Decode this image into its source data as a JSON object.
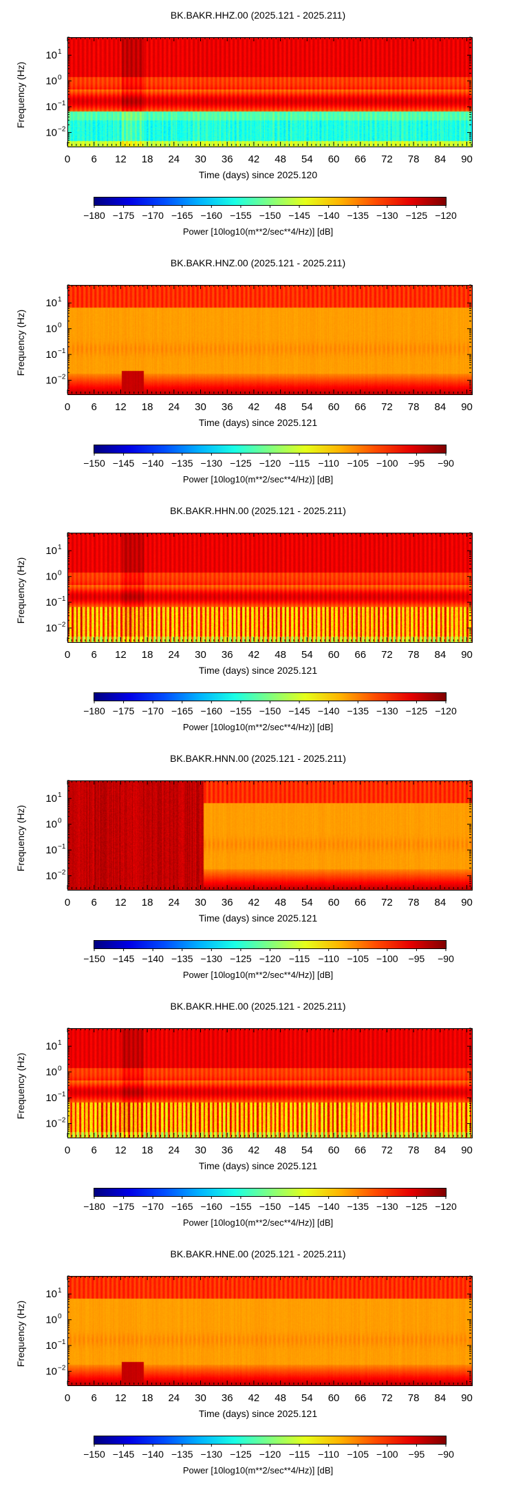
{
  "panels": [
    {
      "title": "BK.BAKR.HHZ.00 (2025.121 - 2025.211)",
      "ylabel": "Frequency (Hz)",
      "xlabel": "Time (days) since 2025.120",
      "colorbar_label": "Power [10log10(m**2/sec**4/Hz)] [dB]",
      "colorbar_ticks": [
        "−180",
        "−175",
        "−170",
        "−165",
        "−160",
        "−155",
        "−150",
        "−145",
        "−140",
        "−135",
        "−130",
        "−125",
        "−120"
      ],
      "profile": "broadband"
    },
    {
      "title": "BK.BAKR.HNZ.00 (2025.121 - 2025.211)",
      "ylabel": "Frequency (Hz)",
      "xlabel": "Time (days) since 2025.121",
      "colorbar_label": "Power [10log10(m**2/sec**4/Hz)] [dB]",
      "colorbar_ticks": [
        "−150",
        "−145",
        "−140",
        "−135",
        "−130",
        "−125",
        "−120",
        "−115",
        "−110",
        "−105",
        "−100",
        "−95",
        "−90"
      ],
      "profile": "strongmotion"
    },
    {
      "title": "BK.BAKR.HHN.00 (2025.121 - 2025.211)",
      "ylabel": "Frequency (Hz)",
      "xlabel": "Time (days) since 2025.121",
      "colorbar_label": "Power [10log10(m**2/sec**4/Hz)] [dB]",
      "colorbar_ticks": [
        "−180",
        "−175",
        "−170",
        "−165",
        "−160",
        "−155",
        "−150",
        "−145",
        "−140",
        "−135",
        "−130",
        "−125",
        "−120"
      ],
      "profile": "broadband_h"
    },
    {
      "title": "BK.BAKR.HNN.00 (2025.121 - 2025.211)",
      "ylabel": "Frequency (Hz)",
      "xlabel": "Time (days) since 2025.121",
      "colorbar_label": "Power [10log10(m**2/sec**4/Hz)] [dB]",
      "colorbar_ticks": [
        "−150",
        "−145",
        "−140",
        "−135",
        "−130",
        "−125",
        "−120",
        "−115",
        "−110",
        "−105",
        "−100",
        "−95",
        "−90"
      ],
      "profile": "strongmotion_early"
    },
    {
      "title": "BK.BAKR.HHE.00 (2025.121 - 2025.211)",
      "ylabel": "Frequency (Hz)",
      "xlabel": "Time (days) since 2025.121",
      "colorbar_label": "Power [10log10(m**2/sec**4/Hz)] [dB]",
      "colorbar_ticks": [
        "−180",
        "−175",
        "−170",
        "−165",
        "−160",
        "−155",
        "−150",
        "−145",
        "−140",
        "−135",
        "−130",
        "−125",
        "−120"
      ],
      "profile": "broadband_h"
    },
    {
      "title": "BK.BAKR.HNE.00 (2025.121 - 2025.211)",
      "ylabel": "Frequency (Hz)",
      "xlabel": "Time (days) since 2025.121",
      "colorbar_label": "Power [10log10(m**2/sec**4/Hz)] [dB]",
      "colorbar_ticks": [
        "−150",
        "−145",
        "−140",
        "−135",
        "−130",
        "−125",
        "−120",
        "−115",
        "−110",
        "−105",
        "−100",
        "−95",
        "−90"
      ],
      "profile": "strongmotion"
    }
  ],
  "chart_data": [
    {
      "type": "heatmap",
      "title": "BK.BAKR.HHZ.00 (2025.121 - 2025.211)",
      "xlabel": "Time (days) since 2025.120",
      "ylabel": "Frequency (Hz)",
      "xlim": [
        0,
        91
      ],
      "ylim": [
        0.003,
        50
      ],
      "yscale": "log",
      "x_ticks": [
        0,
        6,
        12,
        18,
        24,
        30,
        36,
        42,
        48,
        54,
        60,
        66,
        72,
        78,
        84,
        90
      ],
      "y_ticks": [
        "10^-2",
        "10^-1",
        "10^0",
        "10^1"
      ],
      "colorbar_range": [
        -180,
        -120
      ],
      "colormap": "jet",
      "colorbar_label": "Power [10log10(m**2/sec**4/Hz)] [dB]"
    },
    {
      "type": "heatmap",
      "title": "BK.BAKR.HNZ.00 (2025.121 - 2025.211)",
      "xlabel": "Time (days) since 2025.121",
      "ylabel": "Frequency (Hz)",
      "xlim": [
        0,
        91
      ],
      "ylim": [
        0.003,
        50
      ],
      "yscale": "log",
      "x_ticks": [
        0,
        6,
        12,
        18,
        24,
        30,
        36,
        42,
        48,
        54,
        60,
        66,
        72,
        78,
        84,
        90
      ],
      "y_ticks": [
        "10^-2",
        "10^-1",
        "10^0",
        "10^1"
      ],
      "colorbar_range": [
        -150,
        -90
      ],
      "colormap": "jet",
      "colorbar_label": "Power [10log10(m**2/sec**4/Hz)] [dB]"
    },
    {
      "type": "heatmap",
      "title": "BK.BAKR.HHN.00 (2025.121 - 2025.211)",
      "xlabel": "Time (days) since 2025.121",
      "ylabel": "Frequency (Hz)",
      "xlim": [
        0,
        91
      ],
      "ylim": [
        0.003,
        50
      ],
      "yscale": "log",
      "x_ticks": [
        0,
        6,
        12,
        18,
        24,
        30,
        36,
        42,
        48,
        54,
        60,
        66,
        72,
        78,
        84,
        90
      ],
      "y_ticks": [
        "10^-2",
        "10^-1",
        "10^0",
        "10^1"
      ],
      "colorbar_range": [
        -180,
        -120
      ],
      "colormap": "jet",
      "colorbar_label": "Power [10log10(m**2/sec**4/Hz)] [dB]"
    },
    {
      "type": "heatmap",
      "title": "BK.BAKR.HNN.00 (2025.121 - 2025.211)",
      "xlabel": "Time (days) since 2025.121",
      "ylabel": "Frequency (Hz)",
      "xlim": [
        0,
        91
      ],
      "ylim": [
        0.003,
        50
      ],
      "yscale": "log",
      "x_ticks": [
        0,
        6,
        12,
        18,
        24,
        30,
        36,
        42,
        48,
        54,
        60,
        66,
        72,
        78,
        84,
        90
      ],
      "y_ticks": [
        "10^-2",
        "10^-1",
        "10^0",
        "10^1"
      ],
      "colorbar_range": [
        -150,
        -90
      ],
      "colormap": "jet",
      "colorbar_label": "Power [10log10(m**2/sec**4/Hz)] [dB]"
    },
    {
      "type": "heatmap",
      "title": "BK.BAKR.HHE.00 (2025.121 - 2025.211)",
      "xlabel": "Time (days) since 2025.121",
      "ylabel": "Frequency (Hz)",
      "xlim": [
        0,
        91
      ],
      "ylim": [
        0.003,
        50
      ],
      "yscale": "log",
      "x_ticks": [
        0,
        6,
        12,
        18,
        24,
        30,
        36,
        42,
        48,
        54,
        60,
        66,
        72,
        78,
        84,
        90
      ],
      "y_ticks": [
        "10^-2",
        "10^-1",
        "10^0",
        "10^1"
      ],
      "colorbar_range": [
        -180,
        -120
      ],
      "colormap": "jet",
      "colorbar_label": "Power [10log10(m**2/sec**4/Hz)] [dB]"
    },
    {
      "type": "heatmap",
      "title": "BK.BAKR.HNE.00 (2025.121 - 2025.211)",
      "xlabel": "Time (days) since 2025.121",
      "ylabel": "Frequency (Hz)",
      "xlim": [
        0,
        91
      ],
      "ylim": [
        0.003,
        50
      ],
      "yscale": "log",
      "x_ticks": [
        0,
        6,
        12,
        18,
        24,
        30,
        36,
        42,
        48,
        54,
        60,
        66,
        72,
        78,
        84,
        90
      ],
      "y_ticks": [
        "10^-2",
        "10^-1",
        "10^0",
        "10^1"
      ],
      "colorbar_range": [
        -150,
        -90
      ],
      "colormap": "jet",
      "colorbar_label": "Power [10log10(m**2/sec**4/Hz)] [dB]"
    }
  ]
}
